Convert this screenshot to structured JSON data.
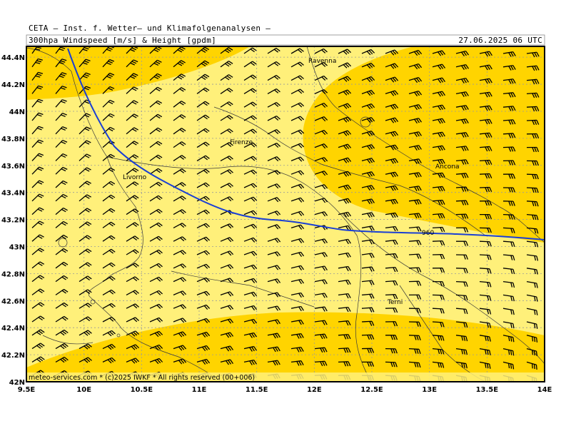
{
  "header": {
    "institute": "CETA — Inst. f. Wetter— und Klimafolgenanalysen —",
    "product": "300hpa Windspeed [m/s] & Height [gpdm]",
    "valid_time": "27.06.2025 06 UTC"
  },
  "footer": {
    "copyright": "meteo-services.com * (c)2025 IWKF * All rights reserved (00+006)"
  },
  "axes": {
    "lon_labels": [
      "9.5E",
      "10E",
      "10.5E",
      "11E",
      "11.5E",
      "12E",
      "12.5E",
      "13E",
      "13.5E",
      "14E"
    ],
    "lat_labels": [
      "44.4N",
      "44.2N",
      "44N",
      "43.8N",
      "43.6N",
      "43.4N",
      "43.2N",
      "43N",
      "42.8N",
      "42.6N",
      "42.4N",
      "42.2N",
      "42N"
    ]
  },
  "cities": [
    "Ravenna",
    "Firenze",
    "Ancona",
    "Livorno",
    "Terni"
  ],
  "contour_label": "960",
  "colors": {
    "low_speed": "#fff07a",
    "high_speed": "#ffd400",
    "contour": "#1a3fd4",
    "barb": "#000000",
    "grid": "#9a9a9a"
  }
}
